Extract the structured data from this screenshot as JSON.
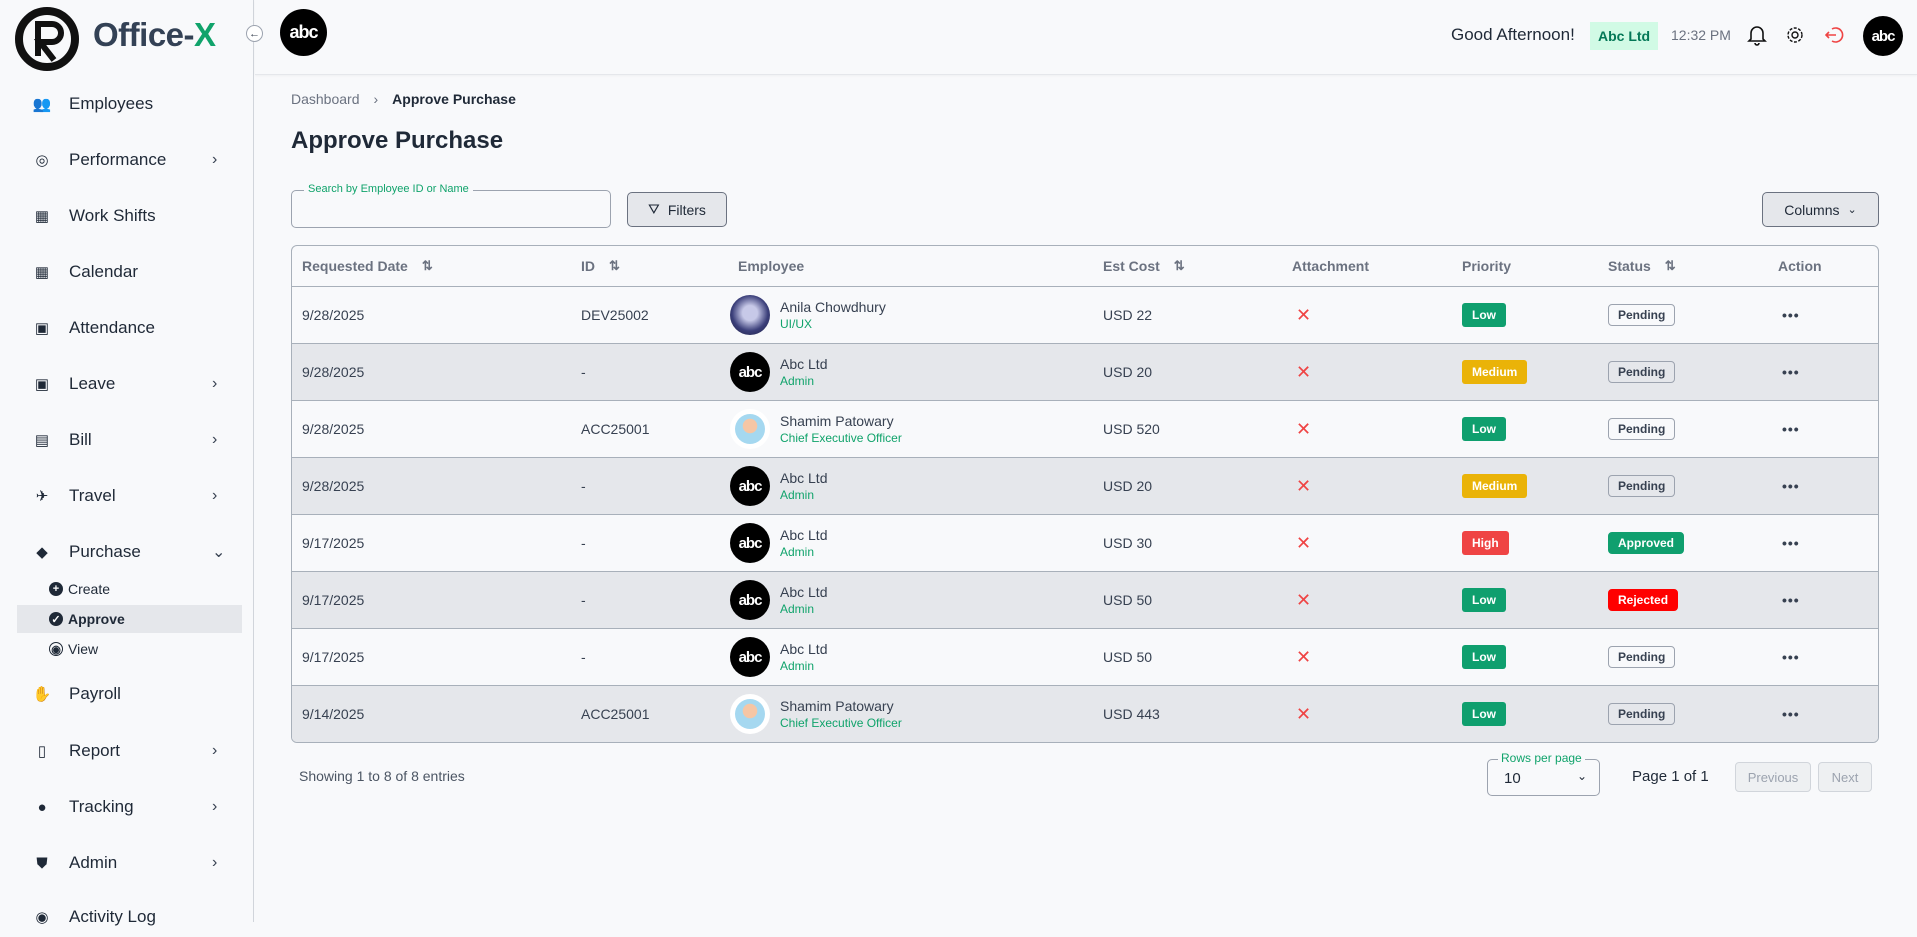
{
  "app": {
    "name_main": "Office-",
    "name_accent": "X"
  },
  "sidebar": {
    "items": [
      {
        "label": "Employees",
        "icon": "users-icon",
        "chevron": false
      },
      {
        "label": "Performance",
        "icon": "gauge-icon",
        "chevron": true
      },
      {
        "label": "Work Shifts",
        "icon": "calendar-check-icon",
        "chevron": false
      },
      {
        "label": "Calendar",
        "icon": "calendar-icon",
        "chevron": false
      },
      {
        "label": "Attendance",
        "icon": "calendar-tick-icon",
        "chevron": false
      },
      {
        "label": "Leave",
        "icon": "calendar-x-icon",
        "chevron": true
      },
      {
        "label": "Bill",
        "icon": "receipt-icon",
        "chevron": true
      },
      {
        "label": "Travel",
        "icon": "plane-icon",
        "chevron": true
      },
      {
        "label": "Purchase",
        "icon": "tag-icon",
        "chevron": true,
        "expanded": true
      },
      {
        "label": "Payroll",
        "icon": "hand-coins-icon",
        "chevron": false
      },
      {
        "label": "Report",
        "icon": "clipboard-plus-icon",
        "chevron": true
      },
      {
        "label": "Tracking",
        "icon": "pin-icon",
        "chevron": true
      },
      {
        "label": "Admin",
        "icon": "shield-user-icon",
        "chevron": true
      },
      {
        "label": "Activity Log",
        "icon": "activity-icon",
        "chevron": false
      }
    ],
    "purchase_sub": [
      {
        "label": "Create",
        "icon": "plus-circle-icon"
      },
      {
        "label": "Approve",
        "icon": "check-circle-icon",
        "active": true
      },
      {
        "label": "View",
        "icon": "eye-icon"
      }
    ]
  },
  "header": {
    "greeting": "Good Afternoon!",
    "company": "Abc Ltd",
    "time": "12:32 PM",
    "logo_text": "abc"
  },
  "breadcrumb": {
    "root": "Dashboard",
    "current": "Approve Purchase"
  },
  "page": {
    "title": "Approve Purchase"
  },
  "search": {
    "label": "Search by Employee ID or Name",
    "value": ""
  },
  "toolbar": {
    "filters": "Filters",
    "columns": "Columns"
  },
  "table": {
    "columns": [
      "Requested Date",
      "ID",
      "Employee",
      "Est Cost",
      "Attachment",
      "Priority",
      "Status",
      "Action"
    ],
    "rows": [
      {
        "date": "9/28/2025",
        "id": "DEV25002",
        "name": "Anila Chowdhury",
        "role": "UI/UX",
        "avatar": "photo",
        "cost": "USD 22",
        "priority": "Low",
        "status": "Pending"
      },
      {
        "date": "9/28/2025",
        "id": "-",
        "name": "Abc Ltd",
        "role": "Admin",
        "avatar": "abc",
        "cost": "USD 20",
        "priority": "Medium",
        "status": "Pending"
      },
      {
        "date": "9/28/2025",
        "id": "ACC25001",
        "name": "Shamim Patowary",
        "role": "Chief Executive Officer",
        "avatar": "cartoon",
        "cost": "USD 520",
        "priority": "Low",
        "status": "Pending"
      },
      {
        "date": "9/28/2025",
        "id": "-",
        "name": "Abc Ltd",
        "role": "Admin",
        "avatar": "abc",
        "cost": "USD 20",
        "priority": "Medium",
        "status": "Pending"
      },
      {
        "date": "9/17/2025",
        "id": "-",
        "name": "Abc Ltd",
        "role": "Admin",
        "avatar": "abc",
        "cost": "USD 30",
        "priority": "High",
        "status": "Approved"
      },
      {
        "date": "9/17/2025",
        "id": "-",
        "name": "Abc Ltd",
        "role": "Admin",
        "avatar": "abc",
        "cost": "USD 50",
        "priority": "Low",
        "status": "Rejected"
      },
      {
        "date": "9/17/2025",
        "id": "-",
        "name": "Abc Ltd",
        "role": "Admin",
        "avatar": "abc",
        "cost": "USD 50",
        "priority": "Low",
        "status": "Pending"
      },
      {
        "date": "9/14/2025",
        "id": "ACC25001",
        "name": "Shamim Patowary",
        "role": "Chief Executive Officer",
        "avatar": "cartoon",
        "cost": "USD 443",
        "priority": "Low",
        "status": "Pending"
      }
    ]
  },
  "colors": {
    "accent": "#10a36b",
    "low": "#0f9f6e",
    "medium": "#eab308",
    "high": "#ef4444",
    "approved": "#0f9f6e",
    "rejected": "#ff0000"
  },
  "footer": {
    "showing": "Showing 1 to 8 of 8 entries",
    "rows_label": "Rows per page",
    "rows_value": "10",
    "page": "Page 1 of 1",
    "prev": "Previous",
    "next": "Next"
  }
}
